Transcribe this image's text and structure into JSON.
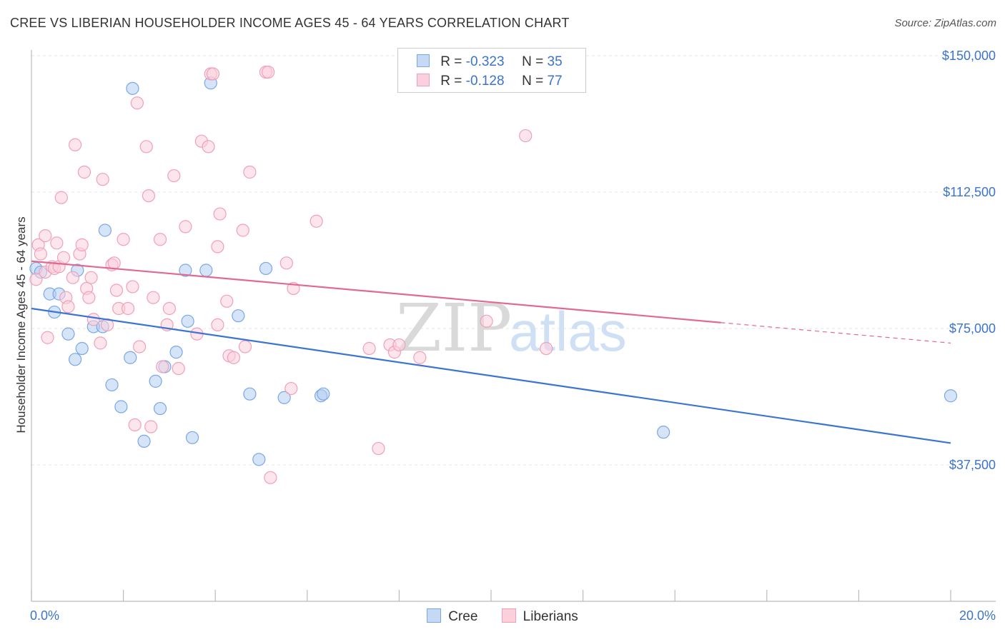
{
  "title": "CREE VS LIBERIAN HOUSEHOLDER INCOME AGES 45 - 64 YEARS CORRELATION CHART",
  "source": "Source: ZipAtlas.com",
  "watermark": {
    "zip": "ZIP",
    "atlas": "atlas"
  },
  "legend": {
    "rows": [
      {
        "r_label": "R =",
        "r_value": "-0.323",
        "n_label": "N =",
        "n_value": "35",
        "color": "#7aa7e8",
        "fill": "#c5d9f5"
      },
      {
        "r_label": "R =",
        "r_value": "-0.128",
        "n_label": "N =",
        "n_value": "77",
        "color": "#f0a0b8",
        "fill": "#fbd0dc"
      }
    ]
  },
  "bottom_legend": [
    {
      "label": "Cree",
      "color": "#7aa7e8",
      "fill": "#c5d9f5"
    },
    {
      "label": "Liberians",
      "color": "#f0a0b8",
      "fill": "#fbd0dc"
    }
  ],
  "chart_data": {
    "type": "scatter",
    "title": "CREE VS LIBERIAN HOUSEHOLDER INCOME AGES 45 - 64 YEARS CORRELATION CHART",
    "xlabel": "",
    "ylabel": "Householder Income Ages 45 - 64 years",
    "xlim": [
      0,
      20
    ],
    "ylim": [
      0,
      155000
    ],
    "x_tick_labels": [
      "0.0%",
      "20.0%"
    ],
    "y_ticks": [
      37500,
      75000,
      112500,
      150000
    ],
    "y_tick_labels": [
      "$37,500",
      "$75,000",
      "$112,500",
      "$150,000"
    ],
    "series": [
      {
        "name": "Cree",
        "color": "#3b74d4",
        "point_fill": "#b5cdf0",
        "point_stroke": "#7aa7e8",
        "trend": {
          "x0": 0,
          "y0": 80500,
          "x1": 20,
          "y1": 43500,
          "dash_from": null
        },
        "points": [
          [
            0.1,
            91500
          ],
          [
            0.2,
            90500
          ],
          [
            0.4,
            84500
          ],
          [
            0.5,
            79500
          ],
          [
            0.6,
            84500
          ],
          [
            0.8,
            73500
          ],
          [
            0.95,
            66500
          ],
          [
            1.0,
            91000
          ],
          [
            1.1,
            69500
          ],
          [
            1.35,
            75500
          ],
          [
            1.55,
            75500
          ],
          [
            1.6,
            102000
          ],
          [
            1.75,
            59500
          ],
          [
            1.95,
            53500
          ],
          [
            2.15,
            67000
          ],
          [
            2.2,
            141000
          ],
          [
            2.45,
            44000
          ],
          [
            2.7,
            60500
          ],
          [
            2.8,
            53000
          ],
          [
            2.9,
            64500
          ],
          [
            3.15,
            68500
          ],
          [
            3.35,
            91000
          ],
          [
            3.4,
            77000
          ],
          [
            3.5,
            45000
          ],
          [
            3.8,
            91000
          ],
          [
            3.9,
            142500
          ],
          [
            4.5,
            78500
          ],
          [
            4.75,
            57000
          ],
          [
            4.95,
            39000
          ],
          [
            5.1,
            91500
          ],
          [
            5.5,
            56000
          ],
          [
            6.3,
            56500
          ],
          [
            6.35,
            57000
          ],
          [
            13.75,
            46500
          ],
          [
            20.0,
            56500
          ]
        ]
      },
      {
        "name": "Liberians",
        "color": "#e06a92",
        "point_fill": "#fbd0dc",
        "point_stroke": "#f0a0b8",
        "trend": {
          "x0": 0,
          "y0": 93500,
          "x1": 20,
          "y1": 71000,
          "dash_from": 15
        },
        "points": [
          [
            0.1,
            88500
          ],
          [
            0.15,
            98000
          ],
          [
            0.2,
            95500
          ],
          [
            0.3,
            100500
          ],
          [
            0.3,
            90500
          ],
          [
            0.35,
            72500
          ],
          [
            0.45,
            92000
          ],
          [
            0.5,
            91500
          ],
          [
            0.55,
            98500
          ],
          [
            0.6,
            92000
          ],
          [
            0.65,
            111000
          ],
          [
            0.7,
            94500
          ],
          [
            0.75,
            83500
          ],
          [
            0.8,
            81000
          ],
          [
            0.9,
            89000
          ],
          [
            0.95,
            125500
          ],
          [
            1.05,
            95500
          ],
          [
            1.1,
            98000
          ],
          [
            1.15,
            118000
          ],
          [
            1.2,
            86000
          ],
          [
            1.25,
            83500
          ],
          [
            1.3,
            89000
          ],
          [
            1.35,
            77500
          ],
          [
            1.5,
            71000
          ],
          [
            1.55,
            116000
          ],
          [
            1.65,
            76000
          ],
          [
            1.75,
            92500
          ],
          [
            1.8,
            93000
          ],
          [
            1.85,
            85500
          ],
          [
            1.9,
            80500
          ],
          [
            2.0,
            99500
          ],
          [
            2.1,
            80500
          ],
          [
            2.2,
            86500
          ],
          [
            2.25,
            48500
          ],
          [
            2.3,
            137000
          ],
          [
            2.35,
            70000
          ],
          [
            2.5,
            125000
          ],
          [
            2.55,
            111500
          ],
          [
            2.6,
            48000
          ],
          [
            2.65,
            83500
          ],
          [
            2.8,
            99500
          ],
          [
            2.85,
            64500
          ],
          [
            2.95,
            76000
          ],
          [
            3.0,
            80500
          ],
          [
            3.1,
            117000
          ],
          [
            3.2,
            64000
          ],
          [
            3.35,
            103000
          ],
          [
            3.6,
            73500
          ],
          [
            3.7,
            126500
          ],
          [
            3.85,
            125000
          ],
          [
            3.9,
            145000
          ],
          [
            3.95,
            145000
          ],
          [
            4.05,
            76000
          ],
          [
            4.05,
            97500
          ],
          [
            4.1,
            106500
          ],
          [
            4.25,
            82500
          ],
          [
            4.3,
            67500
          ],
          [
            4.4,
            67000
          ],
          [
            4.6,
            102000
          ],
          [
            4.65,
            70000
          ],
          [
            4.75,
            118000
          ],
          [
            5.1,
            145500
          ],
          [
            5.15,
            145500
          ],
          [
            5.2,
            34000
          ],
          [
            5.55,
            93000
          ],
          [
            5.65,
            58500
          ],
          [
            5.7,
            86000
          ],
          [
            6.2,
            104500
          ],
          [
            7.35,
            69500
          ],
          [
            7.55,
            42000
          ],
          [
            7.8,
            70500
          ],
          [
            7.9,
            68500
          ],
          [
            8.0,
            70500
          ],
          [
            8.45,
            67000
          ],
          [
            9.9,
            77000
          ],
          [
            10.75,
            128000
          ],
          [
            11.2,
            69500
          ]
        ]
      }
    ]
  }
}
